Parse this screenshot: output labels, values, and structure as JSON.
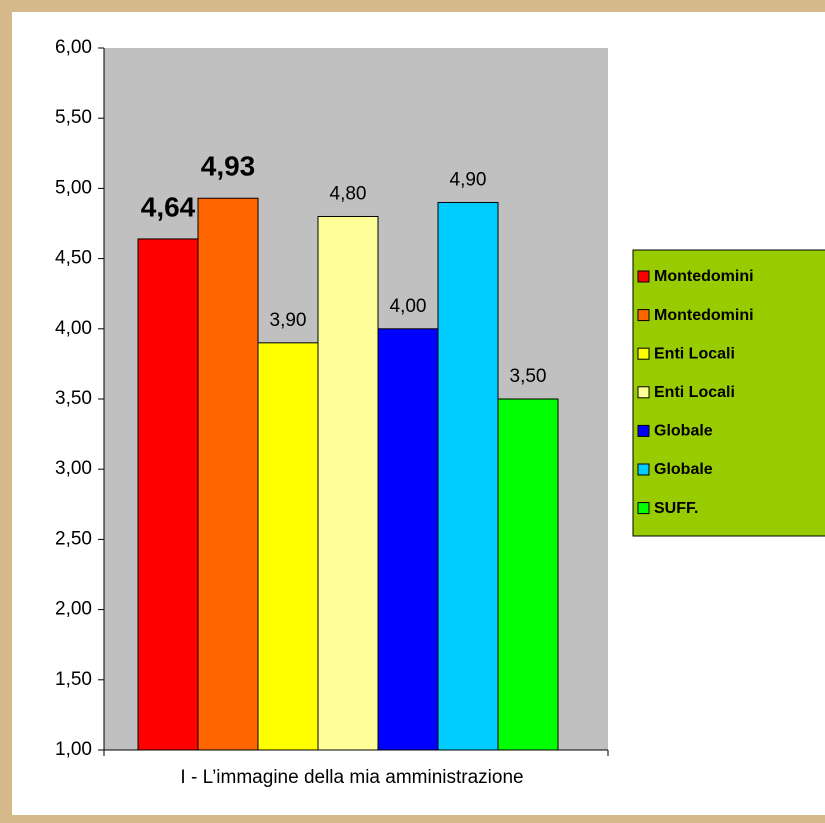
{
  "chart_data": {
    "type": "bar",
    "categories": [
      "I - L’immagine della mia amministrazione"
    ],
    "series": [
      {
        "name": "Montedomini",
        "color": "#ff0000",
        "values": [
          4.64
        ],
        "value_labels": [
          "4,64"
        ]
      },
      {
        "name": "Montedomini",
        "color": "#ff6600",
        "values": [
          4.93
        ],
        "value_labels": [
          "4,93"
        ]
      },
      {
        "name": "Enti Locali",
        "color": "#ffff00",
        "values": [
          3.9
        ],
        "value_labels": [
          "3,90"
        ]
      },
      {
        "name": "Enti Locali",
        "color": "#ffff99",
        "values": [
          4.8
        ],
        "value_labels": [
          "4,80"
        ]
      },
      {
        "name": "Globale",
        "color": "#0000ff",
        "values": [
          4.0
        ],
        "value_labels": [
          "4,00"
        ]
      },
      {
        "name": "Globale",
        "color": "#00ccff",
        "values": [
          4.9
        ],
        "value_labels": [
          "4,90"
        ]
      },
      {
        "name": "SUFF.",
        "color": "#00ff00",
        "values": [
          3.5
        ],
        "value_labels": [
          "3,50"
        ]
      }
    ],
    "ylim": [
      1,
      6
    ],
    "yticks": [
      {
        "value": 1,
        "label": "1,00"
      },
      {
        "value": 1.5,
        "label": "1,50"
      },
      {
        "value": 2,
        "label": "2,00"
      },
      {
        "value": 2.5,
        "label": "2,50"
      },
      {
        "value": 3,
        "label": "3,00"
      },
      {
        "value": 3.5,
        "label": "3,50"
      },
      {
        "value": 4,
        "label": "4,00"
      },
      {
        "value": 4.5,
        "label": "4,50"
      },
      {
        "value": 5,
        "label": "5,00"
      },
      {
        "value": 5.5,
        "label": "5,50"
      },
      {
        "value": 6,
        "label": "6,00"
      }
    ],
    "grid": false,
    "legend": "right"
  }
}
